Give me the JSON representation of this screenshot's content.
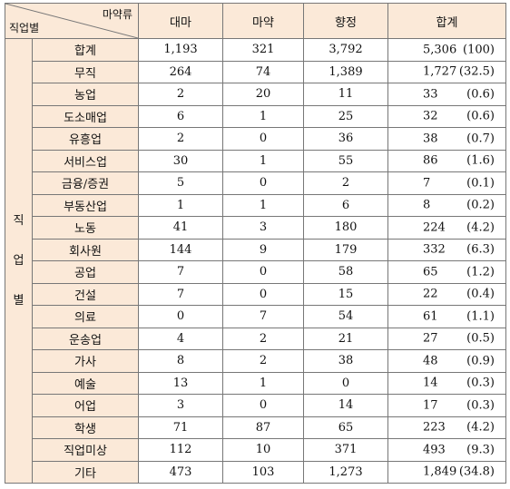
{
  "header": {
    "corner_top": "마약류",
    "corner_bottom": "직업별",
    "cols": [
      "대마",
      "마약",
      "향정",
      "합계"
    ]
  },
  "side_label": [
    "직",
    "업",
    "별"
  ],
  "rows": [
    {
      "label": "합계",
      "v": [
        "1,193",
        "321",
        "3,792"
      ],
      "total": "5,306",
      "pct": "(100)"
    },
    {
      "label": "무직",
      "v": [
        "264",
        "74",
        "1,389"
      ],
      "total": "1,727",
      "pct": "(32.5)"
    },
    {
      "label": "농업",
      "v": [
        "2",
        "20",
        "11"
      ],
      "total": "33",
      "pct": "(0.6)"
    },
    {
      "label": "도소매업",
      "v": [
        "6",
        "1",
        "25"
      ],
      "total": "32",
      "pct": "(0.6)"
    },
    {
      "label": "유흥업",
      "v": [
        "2",
        "0",
        "36"
      ],
      "total": "38",
      "pct": "(0.7)"
    },
    {
      "label": "서비스업",
      "v": [
        "30",
        "1",
        "55"
      ],
      "total": "86",
      "pct": "(1.6)"
    },
    {
      "label": "금융/증권",
      "v": [
        "5",
        "0",
        "2"
      ],
      "total": "7",
      "pct": "(0.1)"
    },
    {
      "label": "부동산업",
      "v": [
        "1",
        "1",
        "6"
      ],
      "total": "8",
      "pct": "(0.2)"
    },
    {
      "label": "노동",
      "v": [
        "41",
        "3",
        "180"
      ],
      "total": "224",
      "pct": "(4.2)"
    },
    {
      "label": "회사원",
      "v": [
        "144",
        "9",
        "179"
      ],
      "total": "332",
      "pct": "(6.3)"
    },
    {
      "label": "공업",
      "v": [
        "7",
        "0",
        "58"
      ],
      "total": "65",
      "pct": "(1.2)"
    },
    {
      "label": "건설",
      "v": [
        "7",
        "0",
        "15"
      ],
      "total": "22",
      "pct": "(0.4)"
    },
    {
      "label": "의료",
      "v": [
        "0",
        "7",
        "54"
      ],
      "total": "61",
      "pct": "(1.1)"
    },
    {
      "label": "운송업",
      "v": [
        "4",
        "2",
        "21"
      ],
      "total": "27",
      "pct": "(0.5)"
    },
    {
      "label": "가사",
      "v": [
        "8",
        "2",
        "38"
      ],
      "total": "48",
      "pct": "(0.9)"
    },
    {
      "label": "예술",
      "v": [
        "13",
        "1",
        "0"
      ],
      "total": "14",
      "pct": "(0.3)"
    },
    {
      "label": "어업",
      "v": [
        "3",
        "0",
        "14"
      ],
      "total": "17",
      "pct": "(0.3)"
    },
    {
      "label": "학생",
      "v": [
        "71",
        "87",
        "65"
      ],
      "total": "223",
      "pct": "(4.2)"
    },
    {
      "label": "직업미상",
      "v": [
        "112",
        "10",
        "371"
      ],
      "total": "493",
      "pct": "(9.3)"
    },
    {
      "label": "기타",
      "v": [
        "473",
        "103",
        "1,273"
      ],
      "total": "1,849",
      "pct": "(34.8)"
    }
  ]
}
